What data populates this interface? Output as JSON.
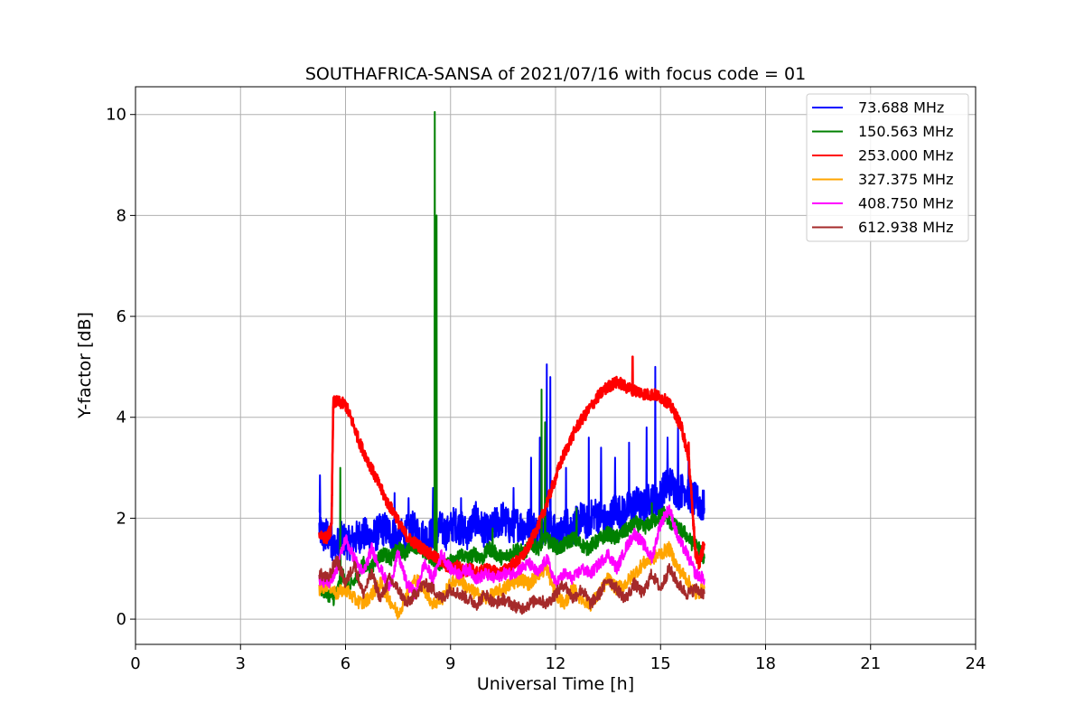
{
  "chart_data": {
    "type": "line",
    "title": "SOUTHAFRICA-SANSA of 2021/07/16 with focus code = 01",
    "xlabel": "Universal Time [h]",
    "ylabel": "Y-factor [dB]",
    "xlim": [
      0,
      24
    ],
    "ylim": [
      -0.5,
      10.55
    ],
    "xticks": [
      0,
      3,
      6,
      9,
      12,
      15,
      18,
      21,
      24
    ],
    "yticks": [
      0,
      2,
      4,
      6,
      8,
      10
    ],
    "grid": true,
    "legend_position": "top-right",
    "series": [
      {
        "name": " 73.688 MHz",
        "color": "#0000ff",
        "x": [
          5.25,
          5.4,
          5.5,
          5.7,
          5.9,
          6.1,
          6.3,
          6.5,
          6.7,
          6.9,
          7.1,
          7.3,
          7.5,
          7.7,
          7.9,
          8.1,
          8.3,
          8.5,
          8.7,
          8.9,
          9.1,
          9.3,
          9.5,
          9.7,
          9.9,
          10.1,
          10.3,
          10.5,
          10.7,
          10.9,
          11.1,
          11.3,
          11.5,
          11.7,
          11.9,
          12.1,
          12.3,
          12.5,
          12.7,
          12.9,
          13.1,
          13.3,
          13.5,
          13.7,
          13.9,
          14.1,
          14.3,
          14.5,
          14.7,
          14.9,
          15.1,
          15.3,
          15.5,
          15.7,
          15.9,
          16.1,
          16.25
        ],
        "y": [
          1.8,
          1.6,
          1.7,
          1.4,
          1.6,
          1.5,
          1.6,
          1.7,
          1.6,
          1.7,
          1.8,
          1.7,
          1.6,
          1.7,
          1.8,
          1.7,
          1.6,
          1.7,
          1.8,
          1.7,
          1.9,
          1.8,
          1.7,
          2.0,
          1.8,
          1.7,
          1.9,
          2.0,
          1.8,
          1.9,
          1.8,
          1.9,
          1.7,
          1.9,
          1.8,
          1.6,
          1.9,
          1.8,
          2.0,
          1.9,
          2.1,
          2.0,
          1.9,
          2.2,
          2.1,
          2.2,
          2.3,
          2.2,
          2.4,
          2.3,
          2.6,
          2.7,
          2.5,
          2.6,
          2.4,
          2.3,
          2.2
        ],
        "peaks": [
          [
            5.27,
            2.85
          ],
          [
            5.6,
            2.3
          ],
          [
            7.4,
            2.5
          ],
          [
            7.8,
            2.4
          ],
          [
            8.5,
            2.6
          ],
          [
            9.3,
            2.4
          ],
          [
            10.8,
            2.6
          ],
          [
            11.3,
            3.2
          ],
          [
            11.55,
            3.6
          ],
          [
            11.75,
            5.05
          ],
          [
            11.85,
            4.8
          ],
          [
            12.3,
            3.0
          ],
          [
            12.95,
            3.6
          ],
          [
            13.3,
            3.4
          ],
          [
            13.7,
            3.2
          ],
          [
            14.1,
            3.5
          ],
          [
            14.6,
            3.8
          ],
          [
            14.85,
            5.0
          ],
          [
            15.2,
            3.6
          ],
          [
            15.5,
            3.8
          ],
          [
            15.8,
            3.4
          ]
        ]
      },
      {
        "name": "150.563 MHz",
        "color": "#008000",
        "x": [
          5.3,
          5.5,
          5.7,
          5.9,
          6.1,
          6.3,
          6.5,
          6.7,
          6.9,
          7.1,
          7.3,
          7.5,
          7.7,
          7.9,
          8.1,
          8.3,
          8.5,
          8.7,
          8.9,
          9.1,
          9.3,
          9.5,
          9.7,
          9.9,
          10.1,
          10.3,
          10.5,
          10.7,
          10.9,
          11.1,
          11.3,
          11.5,
          11.7,
          11.9,
          12.1,
          12.3,
          12.5,
          12.7,
          12.9,
          13.1,
          13.3,
          13.5,
          13.7,
          13.9,
          14.1,
          14.3,
          14.5,
          14.7,
          14.9,
          15.1,
          15.3,
          15.5,
          15.7,
          15.9,
          16.1,
          16.25
        ],
        "y": [
          0.6,
          0.5,
          0.4,
          0.9,
          0.6,
          0.8,
          1.1,
          1.0,
          1.2,
          1.3,
          1.2,
          1.4,
          1.3,
          1.5,
          1.4,
          1.3,
          1.2,
          1.1,
          1.2,
          1.1,
          1.3,
          1.2,
          1.3,
          1.2,
          1.4,
          1.3,
          1.2,
          1.3,
          1.4,
          1.3,
          1.5,
          1.4,
          1.6,
          1.5,
          1.4,
          1.5,
          1.6,
          1.5,
          1.4,
          1.5,
          1.6,
          1.7,
          1.6,
          1.7,
          1.8,
          1.9,
          1.8,
          1.9,
          2.0,
          2.1,
          1.9,
          1.8,
          1.7,
          1.5,
          1.4,
          1.2
        ],
        "peaks": [
          [
            5.85,
            3.0
          ],
          [
            8.55,
            10.05
          ],
          [
            8.6,
            8.0
          ],
          [
            10.2,
            1.8
          ],
          [
            11.6,
            4.55
          ],
          [
            11.7,
            3.9
          ],
          [
            12.6,
            2.2
          ],
          [
            14.75,
            2.3
          ]
        ]
      },
      {
        "name": "253.000 MHz",
        "color": "#ff0000",
        "x": [
          5.25,
          5.45,
          5.6,
          5.65,
          5.8,
          6.0,
          6.2,
          6.4,
          6.6,
          6.8,
          7.0,
          7.2,
          7.4,
          7.6,
          7.8,
          8.0,
          8.2,
          8.4,
          8.6,
          8.8,
          9.0,
          9.2,
          9.4,
          9.6,
          9.8,
          10.0,
          10.2,
          10.4,
          10.6,
          10.8,
          11.0,
          11.2,
          11.4,
          11.6,
          11.8,
          12.0,
          12.2,
          12.4,
          12.6,
          12.8,
          13.0,
          13.2,
          13.4,
          13.6,
          13.8,
          14.0,
          14.2,
          14.4,
          14.6,
          14.8,
          15.0,
          15.2,
          15.4,
          15.6,
          15.7,
          15.8,
          15.9,
          16.0,
          16.1,
          16.25
        ],
        "y": [
          1.7,
          1.6,
          1.8,
          4.3,
          4.3,
          4.25,
          3.9,
          3.5,
          3.2,
          2.9,
          2.6,
          2.3,
          2.1,
          1.8,
          1.6,
          1.5,
          1.4,
          1.3,
          1.2,
          1.1,
          1.0,
          1.05,
          0.95,
          1.0,
          0.9,
          1.0,
          0.95,
          0.9,
          1.0,
          1.1,
          1.2,
          1.4,
          1.7,
          2.0,
          2.4,
          2.8,
          3.2,
          3.5,
          3.8,
          4.0,
          4.2,
          4.4,
          4.55,
          4.65,
          4.7,
          4.6,
          4.55,
          4.5,
          4.45,
          4.45,
          4.4,
          4.3,
          4.1,
          3.8,
          3.5,
          3.2,
          2.3,
          1.3,
          1.1,
          1.5
        ],
        "peaks": [
          [
            14.2,
            5.2
          ],
          [
            15.8,
            3.5
          ]
        ]
      },
      {
        "name": "327.375 MHz",
        "color": "#ffa500",
        "x": [
          5.25,
          5.5,
          5.75,
          6.0,
          6.25,
          6.5,
          6.75,
          7.0,
          7.25,
          7.5,
          7.75,
          8.0,
          8.25,
          8.5,
          8.75,
          9.0,
          9.25,
          9.5,
          9.75,
          10.0,
          10.25,
          10.5,
          10.75,
          11.0,
          11.25,
          11.5,
          11.75,
          12.0,
          12.25,
          12.5,
          12.75,
          13.0,
          13.25,
          13.5,
          13.75,
          14.0,
          14.25,
          14.5,
          14.75,
          15.0,
          15.25,
          15.5,
          15.75,
          16.0,
          16.25
        ],
        "y": [
          0.6,
          0.7,
          0.5,
          0.6,
          0.4,
          0.3,
          0.5,
          0.7,
          0.4,
          0.1,
          0.5,
          0.8,
          0.6,
          0.3,
          0.4,
          0.7,
          0.8,
          0.6,
          0.5,
          0.4,
          0.5,
          0.6,
          0.7,
          0.8,
          0.7,
          0.9,
          1.0,
          0.5,
          0.3,
          0.6,
          0.4,
          0.3,
          0.5,
          0.8,
          0.6,
          0.7,
          0.9,
          1.1,
          1.2,
          1.3,
          1.4,
          1.0,
          0.8,
          0.5,
          0.6
        ]
      },
      {
        "name": "408.750 MHz",
        "color": "#ff00ff",
        "x": [
          5.25,
          5.5,
          5.75,
          6.0,
          6.25,
          6.5,
          6.75,
          7.0,
          7.25,
          7.5,
          7.75,
          8.0,
          8.25,
          8.5,
          8.75,
          9.0,
          9.25,
          9.5,
          9.75,
          10.0,
          10.25,
          10.5,
          10.75,
          11.0,
          11.25,
          11.5,
          11.75,
          12.0,
          12.25,
          12.5,
          12.75,
          13.0,
          13.25,
          13.5,
          13.75,
          14.0,
          14.25,
          14.5,
          14.75,
          15.0,
          15.25,
          15.5,
          15.75,
          16.0,
          16.25
        ],
        "y": [
          0.8,
          0.7,
          1.0,
          1.6,
          1.2,
          0.9,
          1.4,
          1.0,
          0.6,
          1.3,
          0.7,
          0.5,
          1.1,
          0.8,
          1.3,
          1.0,
          0.9,
          1.0,
          0.8,
          0.9,
          0.8,
          0.9,
          0.9,
          1.0,
          1.1,
          0.9,
          1.2,
          0.7,
          0.9,
          0.8,
          1.0,
          0.9,
          1.1,
          1.3,
          1.0,
          1.4,
          1.7,
          1.5,
          1.2,
          1.9,
          2.2,
          1.6,
          1.3,
          0.9,
          0.8
        ]
      },
      {
        "name": "612.938 MHz",
        "color": "#a52a2a",
        "x": [
          5.25,
          5.5,
          5.75,
          6.0,
          6.25,
          6.5,
          6.75,
          7.0,
          7.25,
          7.5,
          7.75,
          8.0,
          8.25,
          8.5,
          8.75,
          9.0,
          9.25,
          9.5,
          9.75,
          10.0,
          10.25,
          10.5,
          10.75,
          11.0,
          11.25,
          11.5,
          11.75,
          12.0,
          12.25,
          12.5,
          12.75,
          13.0,
          13.25,
          13.5,
          13.75,
          14.0,
          14.25,
          14.5,
          14.75,
          15.0,
          15.25,
          15.5,
          15.75,
          16.0,
          16.25
        ],
        "y": [
          0.9,
          0.8,
          1.2,
          0.7,
          1.1,
          0.5,
          0.9,
          0.4,
          0.8,
          0.6,
          0.3,
          0.5,
          0.7,
          0.6,
          0.4,
          0.6,
          0.5,
          0.4,
          0.3,
          0.5,
          0.3,
          0.4,
          0.3,
          0.2,
          0.3,
          0.4,
          0.3,
          0.5,
          0.7,
          0.4,
          0.6,
          0.3,
          0.5,
          0.8,
          0.6,
          0.4,
          0.7,
          0.5,
          0.9,
          0.6,
          1.0,
          0.7,
          0.5,
          0.6,
          0.5
        ]
      }
    ]
  }
}
